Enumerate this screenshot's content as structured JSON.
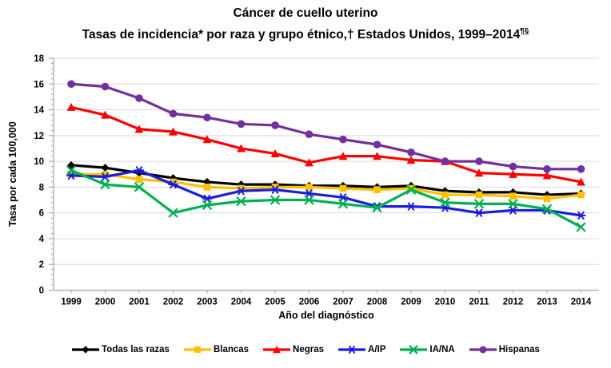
{
  "title": {
    "line1": "Cáncer de cuello uterino",
    "line2": "Tasas de incidencia* por raza y grupo étnico,† Estados Unidos, 1999–2014",
    "line2_sup": "¶§"
  },
  "chart_data": {
    "type": "line",
    "title": "Cáncer de cuello uterino — Tasas de incidencia* por raza y grupo étnico,† Estados Unidos, 1999–2014¶§",
    "xlabel": "Año del diagnóstico",
    "ylabel": "Tasa por cada 100,000",
    "ylim": [
      0,
      18
    ],
    "ytick_step": 2,
    "yminor_step": 0.4,
    "grid": "horizontal",
    "legend_position": "bottom",
    "categories": [
      "1999",
      "2000",
      "2001",
      "2002",
      "2003",
      "2004",
      "2005",
      "2006",
      "2007",
      "2008",
      "2009",
      "2010",
      "2011",
      "2012",
      "2013",
      "2014"
    ],
    "series": [
      {
        "name": "Todas las razas",
        "color": "#000000",
        "marker": "diamond",
        "values": [
          9.7,
          9.5,
          9.1,
          8.7,
          8.4,
          8.2,
          8.2,
          8.1,
          8.1,
          8.0,
          8.1,
          7.7,
          7.6,
          7.6,
          7.4,
          7.5
        ]
      },
      {
        "name": "Blancas",
        "color": "#FFC000",
        "marker": "square",
        "values": [
          9.0,
          9.0,
          8.6,
          8.4,
          8.0,
          7.9,
          8.0,
          8.0,
          7.9,
          7.8,
          7.9,
          7.4,
          7.4,
          7.3,
          7.1,
          7.4
        ]
      },
      {
        "name": "Negras",
        "color": "#FF0000",
        "marker": "triangle",
        "values": [
          14.2,
          13.6,
          12.5,
          12.3,
          11.7,
          11.0,
          10.6,
          9.9,
          10.4,
          10.4,
          10.1,
          10.0,
          9.1,
          9.0,
          8.9,
          8.4
        ]
      },
      {
        "name": "A/IP",
        "color": "#1C1CE0",
        "marker": "star",
        "values": [
          8.9,
          8.8,
          9.3,
          8.2,
          7.1,
          7.7,
          7.8,
          7.5,
          7.2,
          6.5,
          6.5,
          6.4,
          6.0,
          6.2,
          6.2,
          5.8
        ]
      },
      {
        "name": "IA/NA",
        "color": "#00B050",
        "marker": "x",
        "values": [
          9.3,
          8.2,
          8.0,
          6.0,
          6.6,
          6.9,
          7.0,
          7.0,
          6.7,
          6.4,
          7.8,
          6.8,
          6.7,
          6.7,
          6.3,
          4.9
        ]
      },
      {
        "name": "Hispanas",
        "color": "#7030A0",
        "marker": "circle",
        "values": [
          16.0,
          15.8,
          14.9,
          13.7,
          13.4,
          12.9,
          12.8,
          12.1,
          11.7,
          11.3,
          10.7,
          10.0,
          10.0,
          9.6,
          9.4,
          9.4
        ]
      }
    ],
    "axis_color": "#A6A6A6",
    "grid_color": "#D9D9D9"
  }
}
